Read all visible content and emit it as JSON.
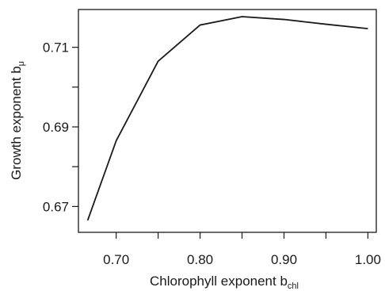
{
  "chart_data": {
    "type": "line",
    "xlabel": "Chlorophyll exponent b",
    "xlabel_subscript": "chl",
    "ylabel": "Growth exponent b",
    "ylabel_subscript": "μ",
    "xlim": [
      0.655,
      1.01
    ],
    "ylim": [
      0.6635,
      0.7195
    ],
    "x_ticks": [
      0.7,
      0.75,
      0.8,
      0.85,
      0.9,
      0.95,
      1.0
    ],
    "x_tick_labels": [
      "0.70",
      "",
      "0.80",
      "",
      "0.90",
      "",
      "1.00"
    ],
    "y_ticks": [
      0.67,
      0.68,
      0.69,
      0.7,
      0.71
    ],
    "y_tick_labels": [
      "0.67",
      "",
      "0.69",
      "",
      "0.71"
    ],
    "grid": false,
    "legend": "none",
    "line_color": "#1a1a1a",
    "series": [
      {
        "x": [
          0.666,
          0.7,
          0.75,
          0.8,
          0.85,
          0.9,
          0.95,
          1.0
        ],
        "values": [
          0.6665,
          0.6865,
          0.7065,
          0.7156,
          0.7177,
          0.717,
          0.7158,
          0.7147
        ]
      }
    ]
  }
}
